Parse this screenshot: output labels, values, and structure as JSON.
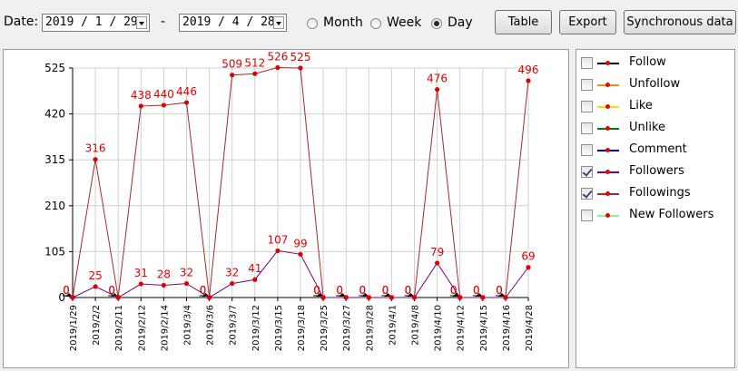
{
  "toolbar": {
    "date_label": "Date:",
    "start_date": "2019 / 1 / 29",
    "end_date": "2019 / 4 / 28",
    "range_sep": "-",
    "periods": [
      {
        "label": "Month",
        "selected": false
      },
      {
        "label": "Week",
        "selected": false
      },
      {
        "label": "Day",
        "selected": true
      }
    ],
    "buttons": {
      "table": "Table",
      "export": "Export",
      "sync": "Synchronous data"
    }
  },
  "legend": [
    {
      "label": "Follow",
      "color": "#000000",
      "checked": false
    },
    {
      "label": "Unfollow",
      "color": "#ff8c00",
      "checked": false
    },
    {
      "label": "Like",
      "color": "#ffd700",
      "checked": false
    },
    {
      "label": "Unlike",
      "color": "#008000",
      "checked": false
    },
    {
      "label": "Comment",
      "color": "#0000cd",
      "checked": false
    },
    {
      "label": "Followers",
      "color": "#800080",
      "checked": true
    },
    {
      "label": "Followings",
      "color": "#a52a2a",
      "checked": true
    },
    {
      "label": "New Followers",
      "color": "#90ee90",
      "checked": false
    }
  ],
  "chart_data": {
    "type": "line",
    "x": [
      "2019/1/29",
      "2019/2/2",
      "2019/2/11",
      "2019/2/12",
      "2019/2/14",
      "2019/3/4",
      "2019/3/6",
      "2019/3/7",
      "2019/3/12",
      "2019/3/15",
      "2019/3/18",
      "2019/3/25",
      "2019/3/27",
      "2019/3/28",
      "2019/4/1",
      "2019/4/8",
      "2019/4/10",
      "2019/4/12",
      "2019/4/15",
      "2019/4/16",
      "2019/4/28"
    ],
    "yticks": [
      0,
      105,
      210,
      315,
      420,
      525
    ],
    "ylim": [
      0,
      525
    ],
    "grid": true,
    "series": [
      {
        "name": "Followings",
        "color": "#a52a2a",
        "values": [
          0,
          316,
          0,
          438,
          440,
          446,
          0,
          509,
          512,
          526,
          525,
          0,
          0,
          0,
          0,
          0,
          476,
          0,
          0,
          0,
          496
        ]
      },
      {
        "name": "Followers",
        "color": "#800080",
        "values": [
          0,
          25,
          0,
          31,
          28,
          32,
          0,
          32,
          41,
          107,
          99,
          0,
          0,
          0,
          0,
          0,
          79,
          0,
          0,
          0,
          69
        ]
      }
    ]
  }
}
